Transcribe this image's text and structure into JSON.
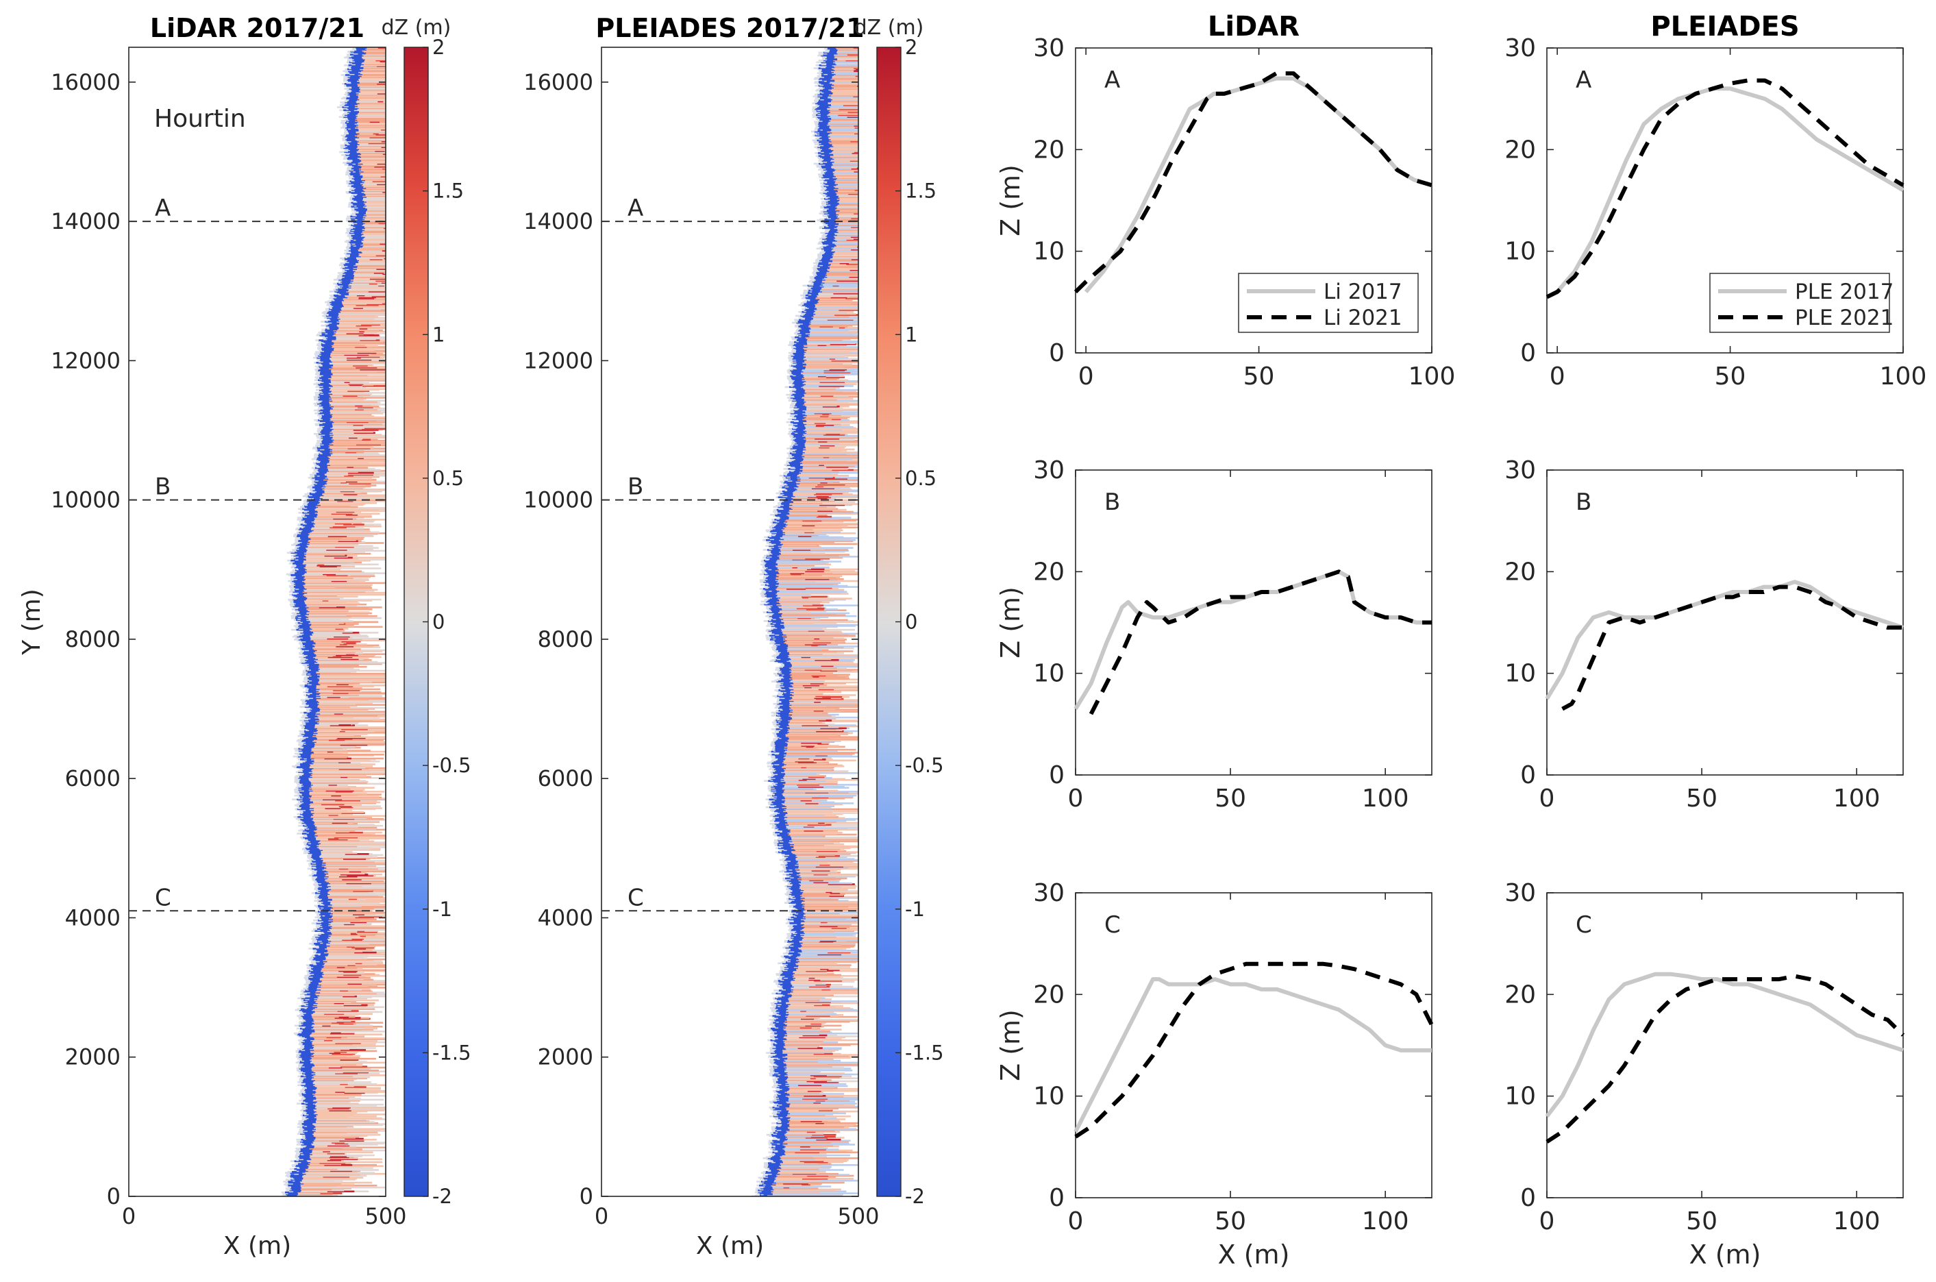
{
  "colors": {
    "red": "#b2182b",
    "blue": "#2a4fcf",
    "neutral": "#dddddd",
    "li2017": "#c8c8c8",
    "li2021": "#000000"
  },
  "chart_data": [
    {
      "type": "heatmap",
      "title": "LiDAR 2017/21",
      "site_label": "Hourtin",
      "xlabel": "X (m)",
      "ylabel": "Y (m)",
      "xlim": [
        0,
        500
      ],
      "ylim": [
        0,
        16500
      ],
      "xticks": [
        "0",
        "500"
      ],
      "yticks": [
        "0",
        "2000",
        "4000",
        "6000",
        "8000",
        "10000",
        "12000",
        "14000",
        "16000"
      ],
      "profiles": [
        {
          "label": "A",
          "y": 14000
        },
        {
          "label": "B",
          "y": 10000
        },
        {
          "label": "C",
          "y": 4100
        }
      ],
      "colorbar": {
        "label": "dZ (m)",
        "range": [
          -2,
          2
        ],
        "ticks": [
          "2",
          "1.5",
          "1",
          "0.5",
          "0",
          "-0.5",
          "-1",
          "-1.5",
          "-2"
        ]
      }
    },
    {
      "type": "heatmap",
      "title": "PLEIADES 2017/21",
      "xlabel": "X (m)",
      "xlim": [
        0,
        500
      ],
      "ylim": [
        0,
        16500
      ],
      "xticks": [
        "0",
        "500"
      ],
      "yticks": [
        "0",
        "2000",
        "4000",
        "6000",
        "8000",
        "10000",
        "12000",
        "14000",
        "16000"
      ],
      "profiles": [
        {
          "label": "A",
          "y": 14000
        },
        {
          "label": "B",
          "y": 10000
        },
        {
          "label": "C",
          "y": 4100
        }
      ],
      "colorbar": {
        "label": "dZ (m)",
        "range": [
          -2,
          2
        ],
        "ticks": [
          "2",
          "1.5",
          "1",
          "0.5",
          "0",
          "-0.5",
          "-1",
          "-1.5",
          "-2"
        ]
      }
    },
    {
      "type": "line",
      "column_title": "LiDAR",
      "panel": "A",
      "xlabel": "",
      "ylabel": "Z (m)",
      "xlim": [
        -3,
        100
      ],
      "ylim": [
        0,
        30
      ],
      "xticks": [
        "0",
        "50",
        "100"
      ],
      "yticks": [
        "0",
        "10",
        "20",
        "30"
      ],
      "legend": {
        "position": "bottom-right",
        "entries": [
          "Li 2017",
          "Li 2021"
        ]
      },
      "series": [
        {
          "name": "Li 2017",
          "x": [
            0,
            5,
            10,
            15,
            20,
            25,
            30,
            35,
            37,
            40,
            45,
            50,
            55,
            60,
            65,
            70,
            75,
            80,
            85,
            90,
            95,
            100
          ],
          "y": [
            6,
            8,
            10.5,
            13.5,
            17,
            20.5,
            24,
            25,
            25.5,
            25.5,
            26,
            26.5,
            27,
            27,
            26,
            24.5,
            23,
            21.5,
            20,
            18,
            17,
            16.5
          ]
        },
        {
          "name": "Li 2021",
          "x": [
            -3,
            0,
            5,
            10,
            15,
            20,
            25,
            30,
            35,
            37,
            40,
            45,
            50,
            55,
            60,
            65,
            70,
            75,
            80,
            85,
            90,
            95,
            100
          ],
          "y": [
            6,
            7,
            8.5,
            10,
            12.5,
            15.5,
            19,
            22,
            25,
            25.5,
            25.5,
            26,
            26.5,
            27.5,
            27.5,
            26,
            24.5,
            23,
            21.5,
            20,
            18,
            17,
            16.5
          ]
        }
      ]
    },
    {
      "type": "line",
      "column_title": "PLEIADES",
      "panel": "A",
      "xlabel": "",
      "ylabel": "",
      "xlim": [
        -3,
        100
      ],
      "ylim": [
        0,
        30
      ],
      "xticks": [
        "0",
        "50",
        "100"
      ],
      "yticks": [
        "0",
        "10",
        "20",
        "30"
      ],
      "legend": {
        "position": "bottom-right",
        "entries": [
          "PLE 2017",
          "PLE 2021"
        ]
      },
      "series": [
        {
          "name": "PLE 2017",
          "x": [
            -3,
            0,
            5,
            10,
            15,
            20,
            25,
            30,
            35,
            40,
            45,
            50,
            55,
            60,
            65,
            70,
            75,
            80,
            85,
            90,
            95,
            100
          ],
          "y": [
            5.5,
            6,
            8,
            11,
            15,
            19,
            22.5,
            24,
            25,
            25.5,
            26,
            26,
            25.5,
            25,
            24,
            22.5,
            21,
            20,
            19,
            18,
            17,
            16
          ]
        },
        {
          "name": "PLE 2021",
          "x": [
            -3,
            0,
            5,
            10,
            15,
            20,
            25,
            30,
            35,
            40,
            45,
            50,
            55,
            60,
            65,
            70,
            75,
            80,
            85,
            90,
            95,
            100
          ],
          "y": [
            5.5,
            6,
            7.5,
            10,
            13,
            16.5,
            20,
            23,
            24.5,
            25.5,
            26,
            26.5,
            26.8,
            26.8,
            26,
            24.5,
            23,
            21.5,
            20,
            18.5,
            17.5,
            16.5
          ]
        }
      ]
    },
    {
      "type": "line",
      "column_title": "",
      "panel": "B",
      "xlabel": "",
      "ylabel": "Z (m)",
      "xlim": [
        0,
        115
      ],
      "ylim": [
        0,
        30
      ],
      "xticks": [
        "0",
        "50",
        "100"
      ],
      "yticks": [
        "0",
        "10",
        "20",
        "30"
      ],
      "series": [
        {
          "name": "Li 2017",
          "x": [
            0,
            5,
            10,
            15,
            17,
            20,
            25,
            30,
            35,
            40,
            45,
            50,
            55,
            60,
            65,
            70,
            75,
            80,
            85,
            88,
            90,
            95,
            100,
            105,
            110,
            115
          ],
          "y": [
            6.5,
            9,
            13,
            16.5,
            17,
            16,
            15.5,
            15.5,
            16,
            16.5,
            17,
            17,
            17.5,
            18,
            18,
            18.5,
            19,
            19.5,
            20,
            19.5,
            17,
            16,
            15.5,
            15.5,
            15,
            15
          ]
        },
        {
          "name": "Li 2021",
          "x": [
            5,
            10,
            15,
            20,
            23,
            25,
            30,
            35,
            40,
            45,
            50,
            55,
            60,
            65,
            70,
            75,
            80,
            85,
            88,
            90,
            95,
            100,
            105,
            110,
            115
          ],
          "y": [
            6,
            9,
            12,
            15.5,
            17,
            16.5,
            15,
            15.5,
            16.5,
            17,
            17.5,
            17.5,
            18,
            18,
            18.5,
            19,
            19.5,
            20,
            19.5,
            17,
            16,
            15.5,
            15.5,
            15,
            15
          ]
        }
      ]
    },
    {
      "type": "line",
      "column_title": "",
      "panel": "B",
      "xlabel": "",
      "ylabel": "",
      "xlim": [
        0,
        115
      ],
      "ylim": [
        0,
        30
      ],
      "xticks": [
        "0",
        "50",
        "100"
      ],
      "yticks": [
        "0",
        "10",
        "20",
        "30"
      ],
      "series": [
        {
          "name": "PLE 2017",
          "x": [
            0,
            5,
            10,
            15,
            20,
            25,
            30,
            35,
            40,
            45,
            50,
            55,
            60,
            65,
            70,
            75,
            80,
            85,
            90,
            95,
            100,
            105,
            110,
            115
          ],
          "y": [
            7.5,
            10,
            13.5,
            15.5,
            16,
            15.5,
            15.5,
            15.5,
            16,
            16.5,
            17,
            17.5,
            18,
            18,
            18.5,
            18.5,
            19,
            18.5,
            17.5,
            16.5,
            16,
            15.5,
            15,
            14.5
          ]
        },
        {
          "name": "PLE 2021",
          "x": [
            5,
            8,
            10,
            15,
            20,
            25,
            30,
            35,
            40,
            45,
            50,
            55,
            60,
            65,
            70,
            75,
            80,
            85,
            90,
            95,
            100,
            105,
            110,
            115
          ],
          "y": [
            6.5,
            7,
            8,
            11.5,
            15,
            15.5,
            15,
            15.5,
            16,
            16.5,
            17,
            17.5,
            17.5,
            18,
            18,
            18.5,
            18.5,
            18,
            17,
            16.5,
            15.5,
            15,
            14.5,
            14.5
          ]
        }
      ]
    },
    {
      "type": "line",
      "column_title": "",
      "panel": "C",
      "xlabel": "X (m)",
      "ylabel": "Z (m)",
      "xlim": [
        0,
        115
      ],
      "ylim": [
        0,
        30
      ],
      "xticks": [
        "0",
        "50",
        "100"
      ],
      "yticks": [
        "0",
        "10",
        "20",
        "30"
      ],
      "series": [
        {
          "name": "Li 2017",
          "x": [
            0,
            5,
            10,
            15,
            20,
            25,
            27,
            30,
            35,
            40,
            45,
            50,
            55,
            60,
            65,
            70,
            75,
            80,
            85,
            90,
            95,
            100,
            105,
            110,
            115
          ],
          "y": [
            6.5,
            9.5,
            12.5,
            15.5,
            18.5,
            21.5,
            21.5,
            21,
            21,
            21,
            21.5,
            21,
            21,
            20.5,
            20.5,
            20,
            19.5,
            19,
            18.5,
            17.5,
            16.5,
            15,
            14.5,
            14.5,
            14.5
          ]
        },
        {
          "name": "Li 2021",
          "x": [
            0,
            5,
            10,
            15,
            20,
            25,
            30,
            35,
            40,
            45,
            50,
            55,
            60,
            65,
            70,
            75,
            80,
            85,
            90,
            95,
            100,
            105,
            110,
            115
          ],
          "y": [
            6,
            7,
            8.5,
            10,
            12,
            14,
            16.5,
            19,
            21,
            22,
            22.5,
            23,
            23,
            23,
            23,
            23,
            23,
            22.8,
            22.5,
            22,
            21.5,
            21,
            20,
            17
          ]
        }
      ]
    },
    {
      "type": "line",
      "column_title": "",
      "panel": "C",
      "xlabel": "X (m)",
      "ylabel": "",
      "xlim": [
        0,
        115
      ],
      "ylim": [
        0,
        30
      ],
      "xticks": [
        "0",
        "50",
        "100"
      ],
      "yticks": [
        "0",
        "10",
        "20",
        "30"
      ],
      "series": [
        {
          "name": "PLE 2017",
          "x": [
            0,
            5,
            10,
            15,
            20,
            25,
            30,
            35,
            40,
            45,
            50,
            55,
            60,
            65,
            70,
            75,
            80,
            85,
            90,
            95,
            100,
            105,
            110,
            115
          ],
          "y": [
            8,
            10,
            13,
            16.5,
            19.5,
            21,
            21.5,
            22,
            22,
            21.8,
            21.5,
            21.5,
            21,
            21,
            20.5,
            20,
            19.5,
            19,
            18,
            17,
            16,
            15.5,
            15,
            14.5
          ]
        },
        {
          "name": "PLE 2021",
          "x": [
            0,
            5,
            10,
            15,
            20,
            25,
            30,
            35,
            40,
            45,
            50,
            55,
            60,
            65,
            70,
            75,
            80,
            85,
            90,
            95,
            100,
            105,
            110,
            115
          ],
          "y": [
            5.5,
            6.5,
            8,
            9.5,
            11,
            13,
            15.5,
            18,
            19.5,
            20.5,
            21,
            21.5,
            21.5,
            21.5,
            21.5,
            21.5,
            21.8,
            21.5,
            21,
            20,
            19,
            18,
            17.5,
            16
          ]
        }
      ]
    }
  ]
}
